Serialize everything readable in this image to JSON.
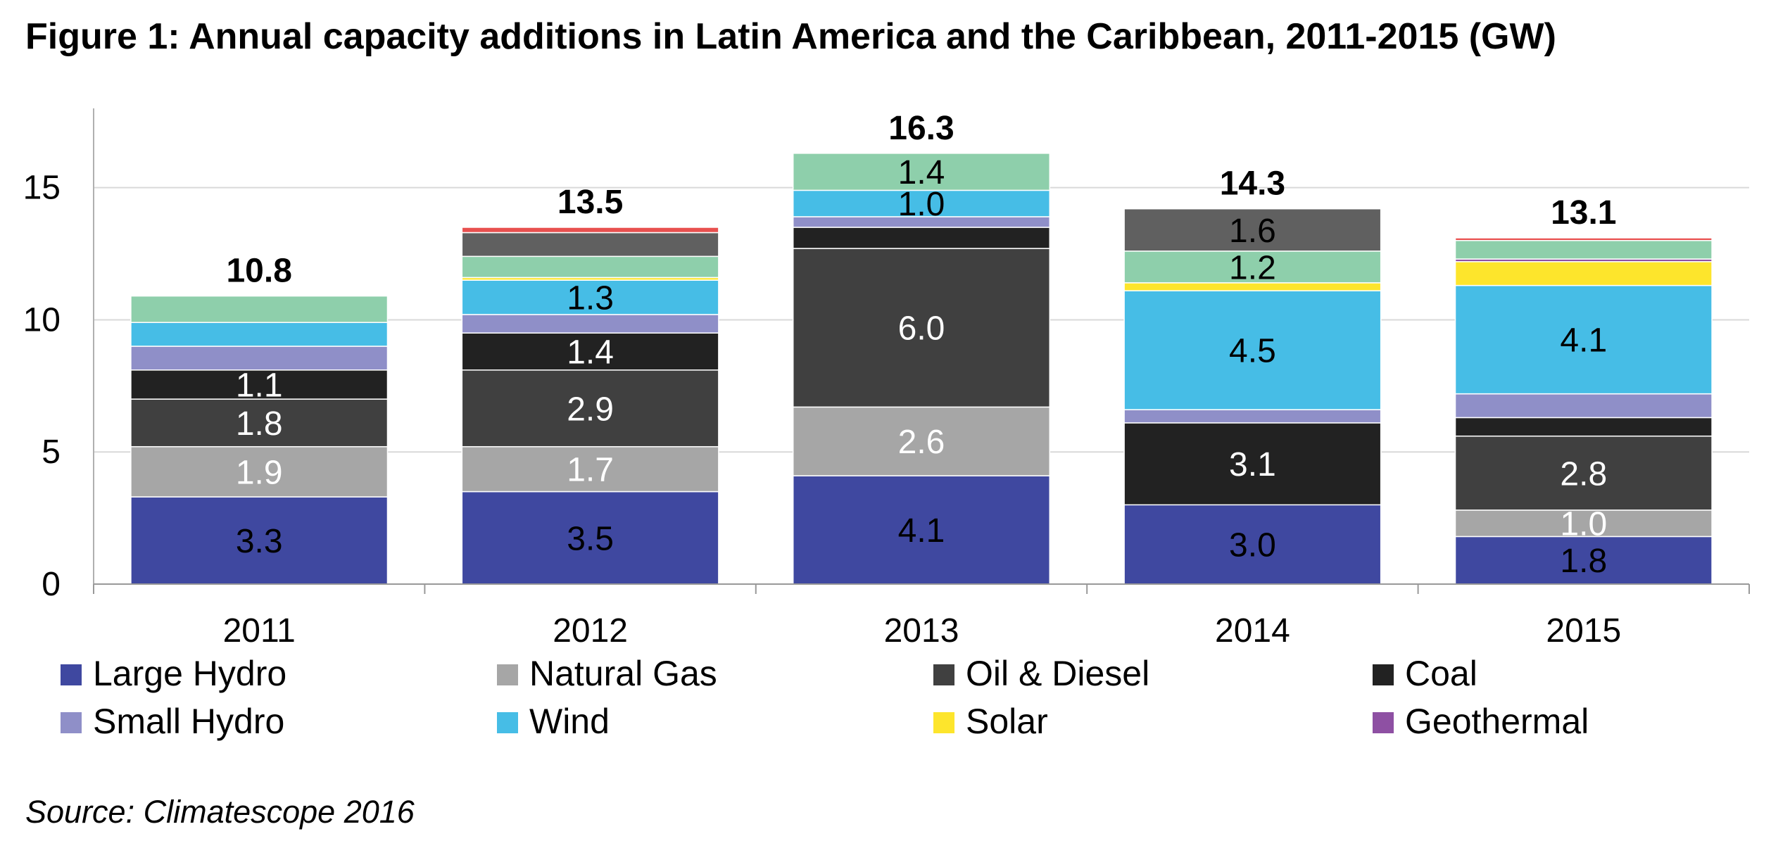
{
  "title": "Figure 1: Annual capacity additions in Latin America and the Caribbean, 2011-2015 (GW)",
  "source": "Source: Climatescope 2016",
  "chart_data": {
    "type": "bar",
    "stacked": true,
    "categories": [
      "2011",
      "2012",
      "2013",
      "2014",
      "2015"
    ],
    "ylim": [
      0,
      18
    ],
    "yticks": [
      0,
      5,
      10,
      15
    ],
    "grid": true,
    "legend_position": "bottom",
    "totals": [
      "10.8",
      "13.5",
      "16.3",
      "14.3",
      "13.1"
    ],
    "series": [
      {
        "name": "Large Hydro",
        "color": "#3f48a0",
        "label_color": "#000000",
        "values": [
          3.3,
          3.5,
          4.1,
          3.0,
          1.8
        ],
        "labels": [
          "3.3",
          "3.5",
          "4.1",
          "3.0",
          "1.8"
        ]
      },
      {
        "name": "Natural Gas",
        "color": "#a6a6a6",
        "label_color": "#ffffff",
        "values": [
          1.9,
          1.7,
          2.6,
          0,
          1.0
        ],
        "labels": [
          "1.9",
          "1.7",
          "2.6",
          "",
          "1.0"
        ]
      },
      {
        "name": "Oil & Diesel",
        "color": "#404040",
        "label_color": "#ffffff",
        "values": [
          1.8,
          2.9,
          6.0,
          0,
          2.8
        ],
        "labels": [
          "1.8",
          "2.9",
          "6.0",
          "",
          "2.8"
        ]
      },
      {
        "name": "Coal",
        "color": "#222222",
        "label_color": "#ffffff",
        "values": [
          1.1,
          1.4,
          0.8,
          3.1,
          0.7
        ],
        "labels": [
          "1.1",
          "1.4",
          "",
          "3.1",
          ""
        ]
      },
      {
        "name": "Small Hydro",
        "color": "#8f8fc8",
        "label_color": "#000000",
        "values": [
          0.9,
          0.7,
          0.4,
          0.5,
          0.9
        ],
        "labels": [
          "",
          "",
          "",
          "",
          ""
        ]
      },
      {
        "name": "Wind",
        "color": "#46bde6",
        "label_color": "#000000",
        "values": [
          0.9,
          1.3,
          1.0,
          4.5,
          4.1
        ],
        "labels": [
          "",
          "1.3",
          "1.0",
          "4.5",
          "4.1"
        ]
      },
      {
        "name": "Solar",
        "color": "#fde52c",
        "label_color": "#000000",
        "values": [
          0,
          0.1,
          0,
          0.3,
          0.9
        ],
        "labels": [
          "",
          "",
          "",
          "",
          ""
        ]
      },
      {
        "name": "Geothermal",
        "color": "#8e50a3",
        "label_color": "#000000",
        "values": [
          0,
          0,
          0,
          0,
          0.1
        ],
        "labels": [
          "",
          "",
          "",
          "",
          ""
        ]
      },
      {
        "name": "",
        "color": "#8ecfab",
        "label_color": "#000000",
        "values": [
          1.0,
          0.8,
          1.4,
          1.2,
          0.7
        ],
        "labels": [
          "",
          "",
          "1.4",
          "1.2",
          ""
        ]
      },
      {
        "name": "",
        "color": "#606060",
        "label_color": "#000000",
        "values": [
          0,
          0.9,
          0,
          1.6,
          0
        ],
        "labels": [
          "",
          "",
          "",
          "1.6",
          ""
        ]
      },
      {
        "name": "",
        "color": "#e8504f",
        "label_color": "#000000",
        "values": [
          0,
          0.2,
          0,
          0,
          0.1
        ],
        "labels": [
          "",
          "",
          "",
          "",
          ""
        ]
      }
    ]
  }
}
